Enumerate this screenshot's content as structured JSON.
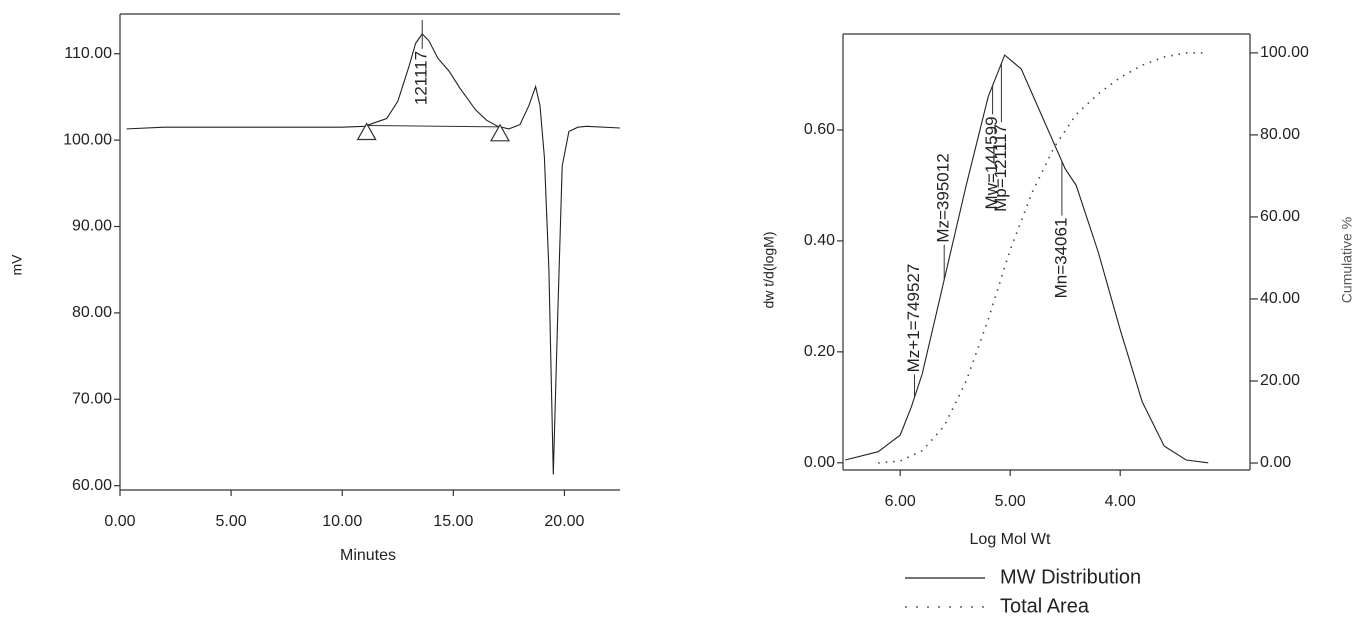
{
  "chart_data": [
    {
      "type": "line",
      "x_label": "Minutes",
      "y_label": "mV",
      "x": [
        0.3,
        2,
        4,
        6,
        8,
        10,
        11,
        12,
        12.5,
        13,
        13.3,
        13.6,
        13.9,
        14.3,
        14.8,
        15.3,
        16,
        16.5,
        17,
        17.5,
        18,
        18.4,
        18.7,
        18.9,
        19.1,
        19.3,
        19.5,
        19.7,
        19.9,
        20.2,
        20.6,
        21,
        22.5
      ],
      "values": [
        101.3,
        101.5,
        101.5,
        101.5,
        101.5,
        101.5,
        101.6,
        102.5,
        104.5,
        108.5,
        111.2,
        112.3,
        111.5,
        109.5,
        108,
        106,
        103.5,
        102.3,
        101.6,
        101.3,
        101.8,
        104,
        106.2,
        104,
        98,
        85,
        61.3,
        80,
        97,
        101,
        101.5,
        101.6,
        101.4
      ],
      "color": "#222222",
      "xlim": [
        0,
        22.5
      ],
      "ylim": [
        59.5,
        114.6
      ],
      "xticks": [
        {
          "value": 0,
          "label": "0.00"
        },
        {
          "value": 5,
          "label": "5.00"
        },
        {
          "value": 10,
          "label": "10.00"
        },
        {
          "value": 15,
          "label": "15.00"
        },
        {
          "value": 20,
          "label": "20.00"
        }
      ],
      "yticks": [
        {
          "value": 60,
          "label": "60.00"
        },
        {
          "value": 70,
          "label": "70.00"
        },
        {
          "value": 80,
          "label": "80.00"
        },
        {
          "value": 90,
          "label": "90.00"
        },
        {
          "value": 100,
          "label": "100.00"
        },
        {
          "value": 110,
          "label": "110.00"
        }
      ],
      "peak_bounds": [
        11.1,
        17.1
      ],
      "annotations": [
        {
          "text": "121117",
          "x": 13.6
        }
      ]
    },
    {
      "type": "line",
      "x_label": "Log Mol Wt",
      "y_label": "dw t/d(logM)",
      "y2_label": "Cumulative %",
      "xlim": [
        6.52,
        2.82
      ],
      "ylim": [
        -0.013,
        0.773
      ],
      "y2lim": [
        -1.7,
        104.6
      ],
      "xticks": [
        {
          "value": 6,
          "label": "6.00"
        },
        {
          "value": 5,
          "label": "5.00"
        },
        {
          "value": 4,
          "label": "4.00"
        }
      ],
      "yticks": [
        {
          "value": 0,
          "label": "0.00"
        },
        {
          "value": 0.2,
          "label": "0.20"
        },
        {
          "value": 0.4,
          "label": "0.40"
        },
        {
          "value": 0.6,
          "label": "0.60"
        }
      ],
      "y2ticks": [
        {
          "value": 0,
          "label": "0.00"
        },
        {
          "value": 20,
          "label": "20.00"
        },
        {
          "value": 40,
          "label": "40.00"
        },
        {
          "value": 60,
          "label": "60.00"
        },
        {
          "value": 80,
          "label": "80.00"
        },
        {
          "value": 100,
          "label": "100.00"
        }
      ],
      "series": [
        {
          "name": "MW Distribution",
          "color": "#222222",
          "line_style": "solid",
          "x": [
            6.5,
            6.2,
            6.0,
            5.9,
            5.8,
            5.6,
            5.4,
            5.2,
            5.05,
            4.9,
            4.7,
            4.5,
            4.4,
            4.2,
            4.0,
            3.8,
            3.6,
            3.4,
            3.2
          ],
          "values": [
            0.005,
            0.02,
            0.05,
            0.1,
            0.16,
            0.33,
            0.5,
            0.66,
            0.735,
            0.71,
            0.62,
            0.53,
            0.5,
            0.38,
            0.24,
            0.11,
            0.03,
            0.005,
            0.0
          ]
        },
        {
          "name": "Total Area",
          "color": "#444444",
          "line_style": "dotted",
          "axis": "y2",
          "x": [
            6.2,
            6.0,
            5.8,
            5.6,
            5.4,
            5.2,
            5.0,
            4.8,
            4.6,
            4.4,
            4.2,
            4.0,
            3.8,
            3.6,
            3.4,
            3.2
          ],
          "values": [
            0,
            0.5,
            3,
            9,
            20,
            35,
            52,
            66,
            77,
            85,
            90,
            94,
            97,
            99,
            100,
            100
          ]
        }
      ],
      "annotations": [
        {
          "text": "Mz+1=749527",
          "x": 5.87
        },
        {
          "text": "Mz=395012",
          "x": 5.6
        },
        {
          "text": "Mw=144599",
          "x": 5.16
        },
        {
          "text": "Mp=121117",
          "x": 5.08
        },
        {
          "text": "Mn=34061",
          "x": 4.53
        }
      ],
      "legend": "bottom"
    }
  ]
}
